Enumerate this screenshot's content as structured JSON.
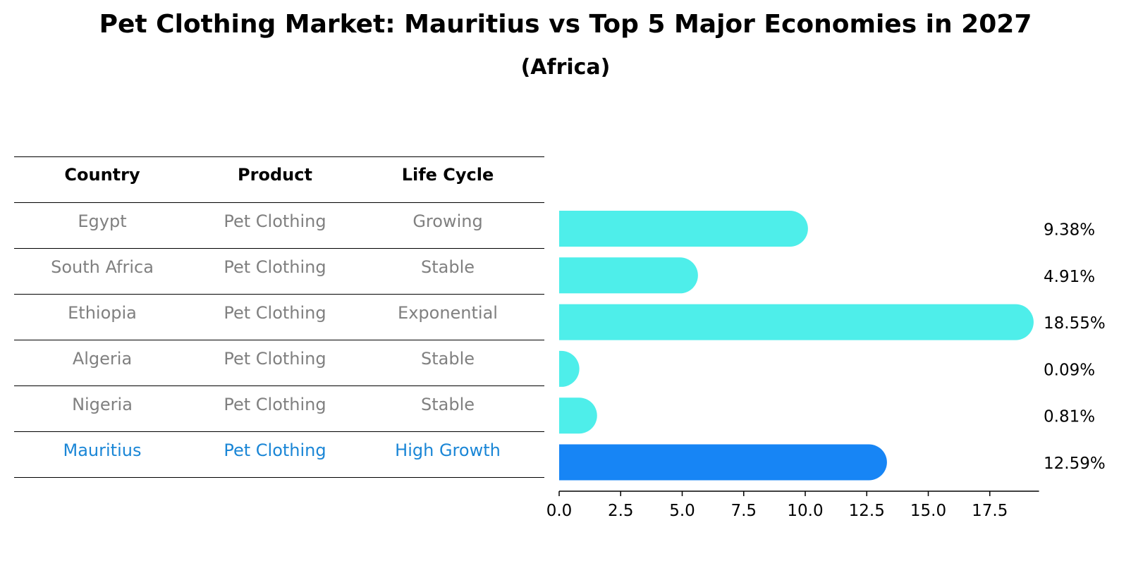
{
  "title": "Pet Clothing Market: Mauritius vs Top 5 Major Economies in 2027",
  "subtitle": "(Africa)",
  "table": {
    "headers": [
      "Country",
      "Product",
      "Life Cycle"
    ],
    "rows": [
      [
        "Egypt",
        "Pet Clothing",
        "Growing"
      ],
      [
        "South Africa",
        "Pet Clothing",
        "Stable"
      ],
      [
        "Ethiopia",
        "Pet Clothing",
        "Exponential"
      ],
      [
        "Algeria",
        "Pet Clothing",
        "Stable"
      ],
      [
        "Nigeria",
        "Pet Clothing",
        "Stable"
      ],
      [
        "Mauritius",
        "Pet Clothing",
        "High Growth"
      ]
    ],
    "highlight_row": 5
  },
  "chart_data": {
    "type": "bar",
    "orientation": "horizontal",
    "categories": [
      "Egypt",
      "South Africa",
      "Ethiopia",
      "Algeria",
      "Nigeria",
      "Mauritius"
    ],
    "values": [
      9.38,
      4.91,
      18.55,
      0.09,
      0.81,
      12.59
    ],
    "value_labels": [
      "9.38%",
      "4.91%",
      "18.55%",
      "0.09%",
      "0.81%",
      "12.59%"
    ],
    "xlim": [
      0,
      19.5
    ],
    "xticks": [
      0.0,
      2.5,
      5.0,
      7.5,
      10.0,
      12.5,
      15.0,
      17.5
    ],
    "xtick_labels": [
      "0.0",
      "2.5",
      "5.0",
      "7.5",
      "10.0",
      "12.5",
      "15.0",
      "17.5"
    ],
    "highlight_index": 5,
    "colors": {
      "default": "#4eeeea",
      "highlight": "#1785f5"
    }
  }
}
